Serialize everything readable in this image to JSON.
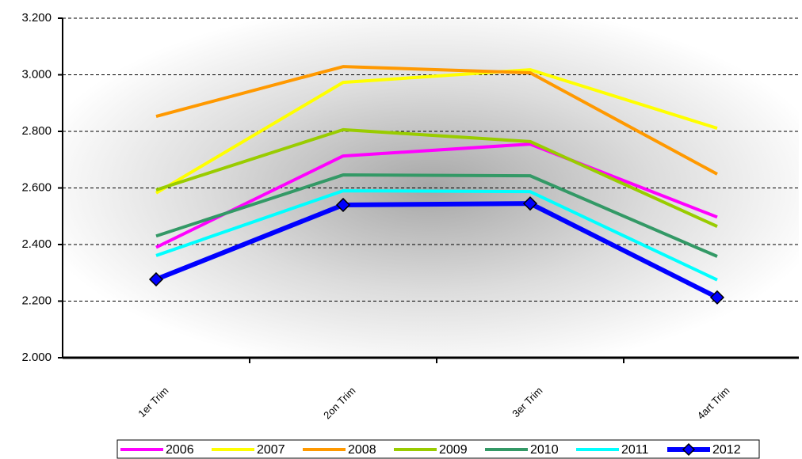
{
  "chart_data": {
    "type": "line",
    "categories": [
      "1er Trim",
      "2on Trim",
      "3er Trim",
      "4art Trim"
    ],
    "series": [
      {
        "name": "2006",
        "color": "#ff00ff",
        "values": [
          2390,
          2713,
          2755,
          2497
        ]
      },
      {
        "name": "2007",
        "color": "#ffff00",
        "values": [
          2582,
          2973,
          3018,
          2811
        ]
      },
      {
        "name": "2008",
        "color": "#ff9900",
        "values": [
          2853,
          3029,
          3007,
          2649
        ]
      },
      {
        "name": "2009",
        "color": "#99cc00",
        "values": [
          2593,
          2806,
          2764,
          2464
        ]
      },
      {
        "name": "2010",
        "color": "#339966",
        "values": [
          2430,
          2646,
          2643,
          2358
        ]
      },
      {
        "name": "2011",
        "color": "#00ffff",
        "values": [
          2361,
          2590,
          2587,
          2275
        ]
      },
      {
        "name": "2012",
        "color": "#0000ff",
        "values": [
          2277,
          2540,
          2545,
          2213
        ],
        "markers": true
      }
    ],
    "ylim": [
      2000,
      3200
    ],
    "yticks": [
      {
        "value": 2000,
        "label": "2.000"
      },
      {
        "value": 2200,
        "label": "2.200"
      },
      {
        "value": 2400,
        "label": "2.400"
      },
      {
        "value": 2600,
        "label": "2.600"
      },
      {
        "value": 2800,
        "label": "2.800"
      },
      {
        "value": 3000,
        "label": "3.000"
      },
      {
        "value": 3200,
        "label": "3.200"
      }
    ],
    "grid": true,
    "legend": "bottom"
  }
}
